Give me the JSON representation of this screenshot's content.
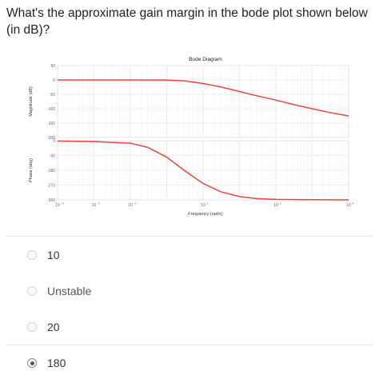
{
  "question": {
    "text": "What's the approximate gain margin in the bode plot shown below (in dB)?"
  },
  "chart_data": {
    "type": "line",
    "title": "Bode Diagram",
    "xlabel": "Frequency  (rad/s)",
    "x_scale": "log",
    "xlim": [
      0.001,
      100000
    ],
    "x_ticks": [
      0.001,
      0.01,
      0.1,
      10,
      1000,
      100000
    ],
    "x_tick_labels": [
      "10",
      "10",
      "10",
      "10",
      "10",
      "10"
    ],
    "x_tick_exponents": [
      "-3",
      "-2",
      "-1",
      "1",
      "3",
      "5"
    ],
    "grid": true,
    "panels": [
      {
        "name": "magnitude",
        "ylabel": "Magnitude (dB)",
        "ylim": [
          -200,
          50
        ],
        "y_ticks": [
          50,
          0,
          -50,
          -100,
          -150,
          -200
        ],
        "y_tick_labels": [
          "50",
          "0",
          "-50",
          "-100",
          "-150",
          "-200"
        ],
        "series": [
          {
            "x": [
              0.001,
              0.01,
              0.1,
              1,
              3,
              10,
              30,
              100,
              300,
              1000,
              3000,
              10000,
              30000,
              100000
            ],
            "y": [
              0,
              0,
              0,
              -0.5,
              -3,
              -12,
              -24,
              -40,
              -55,
              -70,
              -85,
              -100,
              -113,
              -125
            ],
            "color": "#e8453c"
          }
        ]
      },
      {
        "name": "phase",
        "ylabel": "Phase (deg)",
        "ylim": [
          -360,
          0
        ],
        "y_ticks": [
          0,
          -90,
          -180,
          -270,
          -360
        ],
        "y_tick_labels": [
          "0",
          "-90",
          "-180",
          "-270",
          "-360"
        ],
        "series": [
          {
            "x": [
              0.001,
              0.01,
              0.1,
              0.3,
              1,
              3,
              10,
              30,
              100,
              300,
              1000,
              10000,
              100000
            ],
            "y": [
              -2,
              -5,
              -15,
              -40,
              -100,
              -180,
              -260,
              -310,
              -340,
              -352,
              -357,
              -359,
              -360
            ],
            "color": "#e8453c"
          }
        ]
      }
    ]
  },
  "options": [
    {
      "label": "10",
      "selected": false
    },
    {
      "label": "Unstable",
      "selected": false
    },
    {
      "label": "20",
      "selected": false
    },
    {
      "label": "180",
      "selected": true
    }
  ]
}
